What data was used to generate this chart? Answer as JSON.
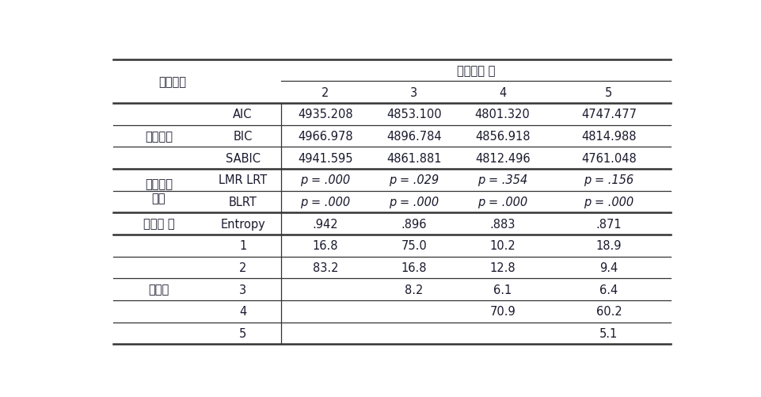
{
  "bg_color": "#ffffff",
  "text_color": "#1a1a2e",
  "font_size": 10.5,
  "col_header": "하위유형 수",
  "col_label": "분류기준",
  "col_numbers": [
    "2",
    "3",
    "4",
    "5"
  ],
  "row_groups": [
    {
      "group_label": "정보지수",
      "rows": [
        {
          "criterion": "AIC",
          "values": [
            "4935.208",
            "4853.100",
            "4801.320",
            "4747.477"
          ],
          "italic": false
        },
        {
          "criterion": "BIC",
          "values": [
            "4966.978",
            "4896.784",
            "4856.918",
            "4814.988"
          ],
          "italic": false
        },
        {
          "criterion": "SABIC",
          "values": [
            "4941.595",
            "4861.881",
            "4812.496",
            "4761.048"
          ],
          "italic": false
        }
      ]
    },
    {
      "group_label": "모형비교\n검증",
      "rows": [
        {
          "criterion": "LMR LRT",
          "values": [
            "p = .000",
            "p = .029",
            "p = .354",
            "p = .156"
          ],
          "italic": true
        },
        {
          "criterion": "BLRT",
          "values": [
            "p = .000",
            "p = .000",
            "p = .000",
            "p = .000"
          ],
          "italic": true
        }
      ]
    },
    {
      "group_label": "분류의 질",
      "rows": [
        {
          "criterion": "Entropy",
          "values": [
            ".942",
            ".896",
            ".883",
            ".871"
          ],
          "italic": false
        }
      ]
    },
    {
      "group_label": "분류율",
      "rows": [
        {
          "criterion": "1",
          "values": [
            "16.8",
            "75.0",
            "10.2",
            "18.9"
          ],
          "italic": false
        },
        {
          "criterion": "2",
          "values": [
            "83.2",
            "16.8",
            "12.8",
            "9.4"
          ],
          "italic": false
        },
        {
          "criterion": "3",
          "values": [
            "",
            "8.2",
            "6.1",
            "6.4"
          ],
          "italic": false
        },
        {
          "criterion": "4",
          "values": [
            "",
            "",
            "70.9",
            "60.2"
          ],
          "italic": false
        },
        {
          "criterion": "5",
          "values": [
            "",
            "",
            "",
            "5.1"
          ],
          "italic": false
        }
      ]
    }
  ]
}
